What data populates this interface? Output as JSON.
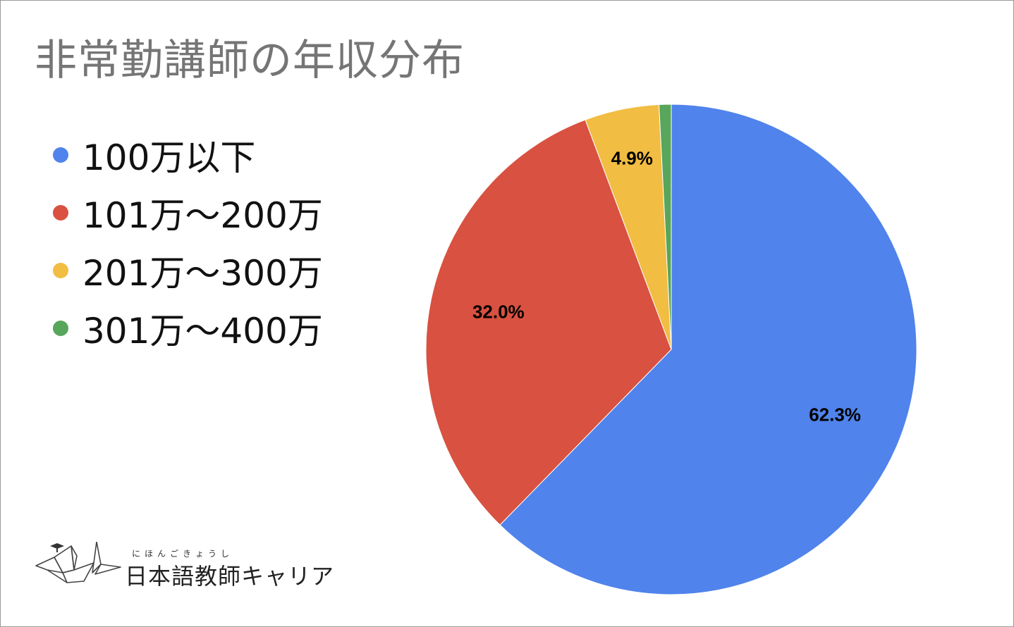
{
  "chart_data": {
    "type": "pie",
    "title": "非常勤講師の年収分布",
    "legend_position": "left",
    "categories": [
      "100万以下",
      "101万〜200万",
      "201万〜300万",
      "301万〜400万"
    ],
    "values": [
      62.3,
      32.0,
      4.9,
      0.8
    ],
    "data_labels": [
      "62.3%",
      "32.0%",
      "4.9%",
      ""
    ],
    "colors": [
      "#5083eb",
      "#d95140",
      "#f1bd42",
      "#58a55c"
    ]
  },
  "brand": {
    "furigana": "にほんごきょうし",
    "name": "日本語教師キャリア",
    "logo_icon": "paper-crane-icon"
  }
}
